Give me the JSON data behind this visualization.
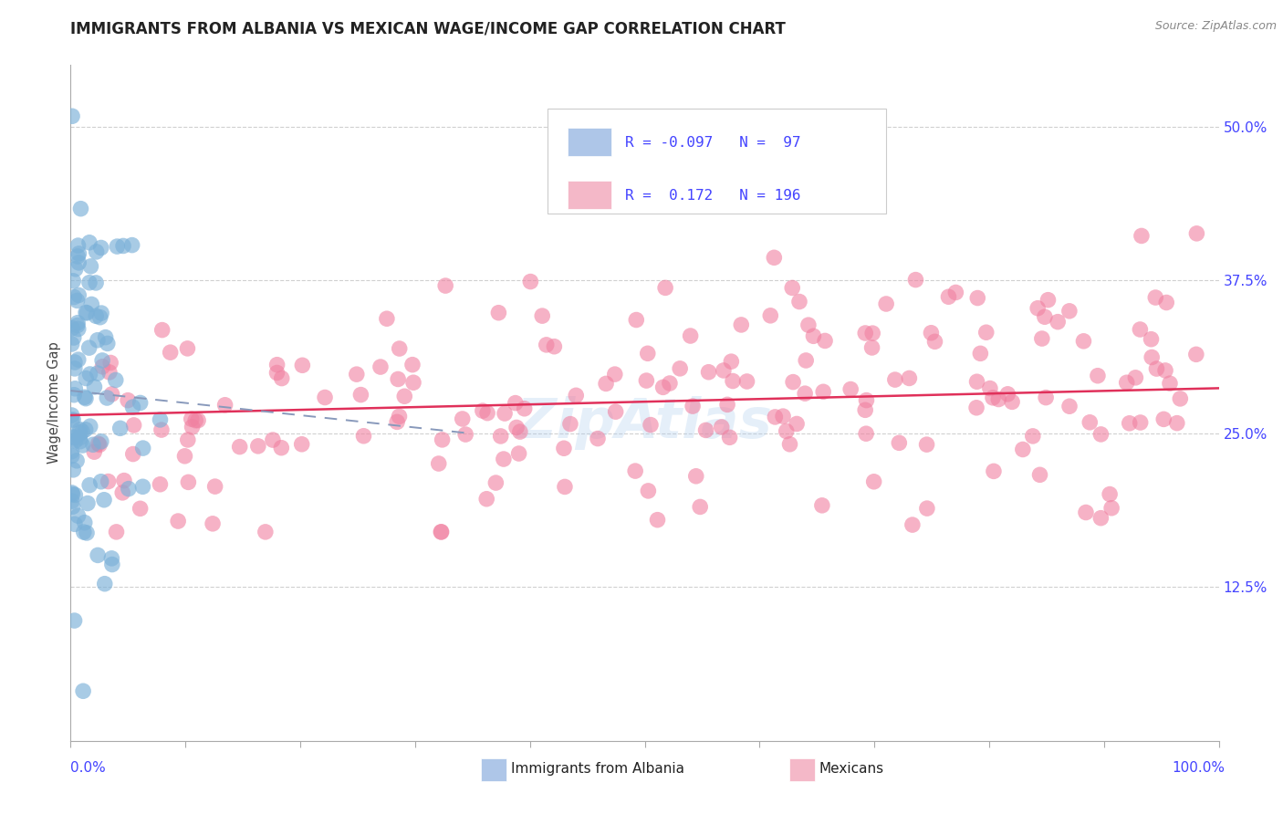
{
  "title": "IMMIGRANTS FROM ALBANIA VS MEXICAN WAGE/INCOME GAP CORRELATION CHART",
  "source": "Source: ZipAtlas.com",
  "ylabel": "Wage/Income Gap",
  "yticks": [
    "50.0%",
    "37.5%",
    "25.0%",
    "12.5%"
  ],
  "ytick_vals": [
    0.5,
    0.375,
    0.25,
    0.125
  ],
  "xlim": [
    0.0,
    1.0
  ],
  "ylim": [
    0.0,
    0.55
  ],
  "albania_color": "#7ab0d8",
  "albania_patch_color": "#aec6e8",
  "mexico_color": "#f080a0",
  "mexico_patch_color": "#f4b8c8",
  "albania_r": -0.097,
  "albania_n": 97,
  "mexico_r": 0.172,
  "mexico_n": 196,
  "watermark": "ZipAtlas",
  "background_color": "#ffffff",
  "grid_color": "#d0d0d0",
  "title_fontsize": 12,
  "tick_label_color": "#4444ff",
  "legend_text_color": "#4444ff",
  "source_color": "#888888"
}
